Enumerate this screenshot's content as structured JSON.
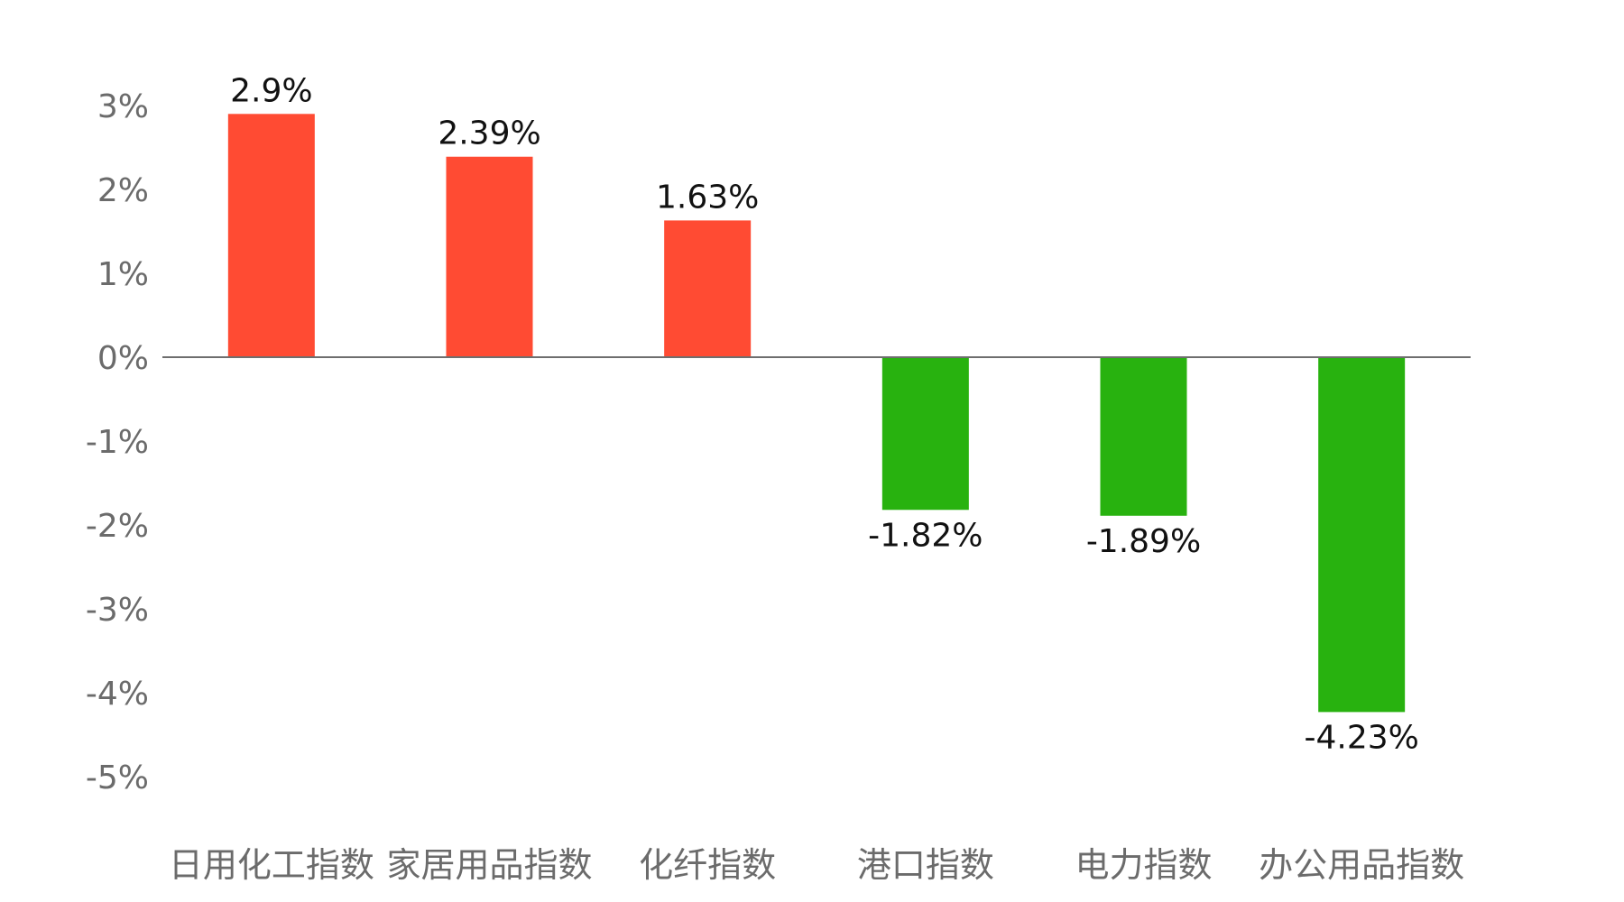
{
  "chart_data": {
    "type": "bar",
    "categories": [
      "日用化工指数",
      "家居用品指数",
      "化纤指数",
      "港口指数",
      "电力指数",
      "办公用品指数"
    ],
    "values": [
      2.9,
      2.39,
      1.63,
      -1.82,
      -1.89,
      -4.23
    ],
    "value_labels": [
      "2.9%",
      "2.39%",
      "1.63%",
      "-1.82%",
      "-1.89%",
      "-4.23%"
    ],
    "y_ticks": [
      3,
      2,
      1,
      0,
      -1,
      -2,
      -3,
      -4,
      -5
    ],
    "y_tick_labels": [
      "3%",
      "2%",
      "1%",
      "0%",
      "-1%",
      "-2%",
      "-3%",
      "-4%",
      "-5%"
    ],
    "ylim": [
      -5,
      3
    ],
    "grid": false,
    "legend": "none",
    "colors": {
      "positive": "#ff4b33",
      "negative": "#28b20f",
      "zero_line": "#6e6e6e",
      "tick_text": "#6b6b6b",
      "data_text": "#111111"
    }
  }
}
